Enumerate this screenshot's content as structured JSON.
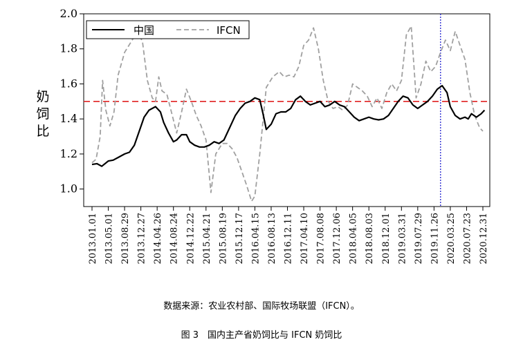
{
  "chart_data": {
    "type": "line",
    "ylabel": "奶饲比",
    "ylim": [
      0.9,
      2.0
    ],
    "yticks": [
      "1.0",
      "1.2",
      "1.4",
      "1.6",
      "1.8",
      "2.0"
    ],
    "categories": [
      "2013.01.01",
      "2013.05.01",
      "2013.08.29",
      "2013.12.27",
      "2014.04.26",
      "2014.08.24",
      "2014.12.22",
      "2015.04.21",
      "2015.08.19",
      "2015.12.17",
      "2016.04.15",
      "2016.08.13",
      "2016.12.11",
      "2017.04.10",
      "2017.08.08",
      "2017.12.06",
      "2018.04.05",
      "2018.08.03",
      "2018.12.01",
      "2019.03.31",
      "2019.07.29",
      "2019.11.26",
      "2020.03.25",
      "2020.07.23",
      "2020.12.31"
    ],
    "reference_line": {
      "y": 1.5,
      "color": "#e02020",
      "style": "dashed"
    },
    "vertical_marker": {
      "at_index": 21.4,
      "color": "#2020d0",
      "style": "dotted"
    },
    "grid": false,
    "legend_position": "top-left",
    "series": [
      {
        "name": "中国",
        "color": "#000000",
        "style": "solid",
        "points": [
          [
            0,
            1.14
          ],
          [
            0.3,
            1.145
          ],
          [
            0.6,
            1.13
          ],
          [
            1.0,
            1.16
          ],
          [
            1.3,
            1.165
          ],
          [
            1.6,
            1.18
          ],
          [
            2.0,
            1.2
          ],
          [
            2.3,
            1.21
          ],
          [
            2.6,
            1.25
          ],
          [
            2.9,
            1.33
          ],
          [
            3.2,
            1.41
          ],
          [
            3.5,
            1.45
          ],
          [
            3.9,
            1.47
          ],
          [
            4.2,
            1.44
          ],
          [
            4.4,
            1.38
          ],
          [
            4.7,
            1.32
          ],
          [
            5.0,
            1.27
          ],
          [
            5.2,
            1.28
          ],
          [
            5.5,
            1.31
          ],
          [
            5.8,
            1.31
          ],
          [
            6.0,
            1.27
          ],
          [
            6.3,
            1.25
          ],
          [
            6.6,
            1.24
          ],
          [
            6.9,
            1.24
          ],
          [
            7.2,
            1.25
          ],
          [
            7.5,
            1.27
          ],
          [
            7.8,
            1.26
          ],
          [
            8.1,
            1.28
          ],
          [
            8.4,
            1.34
          ],
          [
            8.8,
            1.42
          ],
          [
            9.1,
            1.46
          ],
          [
            9.4,
            1.49
          ],
          [
            9.7,
            1.5
          ],
          [
            10.0,
            1.52
          ],
          [
            10.3,
            1.51
          ],
          [
            10.5,
            1.43
          ],
          [
            10.7,
            1.34
          ],
          [
            11.0,
            1.37
          ],
          [
            11.3,
            1.43
          ],
          [
            11.6,
            1.44
          ],
          [
            11.9,
            1.44
          ],
          [
            12.2,
            1.46
          ],
          [
            12.5,
            1.51
          ],
          [
            12.8,
            1.53
          ],
          [
            13.1,
            1.5
          ],
          [
            13.4,
            1.48
          ],
          [
            13.7,
            1.49
          ],
          [
            14.0,
            1.5
          ],
          [
            14.3,
            1.47
          ],
          [
            14.6,
            1.48
          ],
          [
            14.9,
            1.5
          ],
          [
            15.2,
            1.48
          ],
          [
            15.5,
            1.47
          ],
          [
            15.8,
            1.44
          ],
          [
            16.1,
            1.41
          ],
          [
            16.4,
            1.39
          ],
          [
            16.7,
            1.4
          ],
          [
            17.0,
            1.41
          ],
          [
            17.3,
            1.4
          ],
          [
            17.6,
            1.395
          ],
          [
            17.9,
            1.4
          ],
          [
            18.2,
            1.42
          ],
          [
            18.5,
            1.46
          ],
          [
            18.8,
            1.5
          ],
          [
            19.1,
            1.53
          ],
          [
            19.4,
            1.52
          ],
          [
            19.7,
            1.48
          ],
          [
            20.0,
            1.46
          ],
          [
            20.3,
            1.48
          ],
          [
            20.6,
            1.5
          ],
          [
            20.9,
            1.53
          ],
          [
            21.2,
            1.57
          ],
          [
            21.5,
            1.59
          ],
          [
            21.8,
            1.55
          ],
          [
            22.0,
            1.47
          ],
          [
            22.3,
            1.42
          ],
          [
            22.6,
            1.4
          ],
          [
            22.9,
            1.41
          ],
          [
            23.1,
            1.4
          ],
          [
            23.3,
            1.43
          ],
          [
            23.6,
            1.41
          ],
          [
            23.9,
            1.43
          ],
          [
            24.1,
            1.45
          ]
        ]
      },
      {
        "name": "IFCN",
        "color": "#a0a0a0",
        "style": "dashed",
        "points": [
          [
            0,
            1.15
          ],
          [
            0.25,
            1.17
          ],
          [
            0.5,
            1.3
          ],
          [
            0.65,
            1.62
          ],
          [
            0.85,
            1.45
          ],
          [
            1.1,
            1.36
          ],
          [
            1.35,
            1.44
          ],
          [
            1.6,
            1.65
          ],
          [
            2.0,
            1.78
          ],
          [
            2.4,
            1.84
          ],
          [
            2.8,
            1.9
          ],
          [
            3.1,
            1.84
          ],
          [
            3.4,
            1.62
          ],
          [
            3.7,
            1.52
          ],
          [
            3.9,
            1.5
          ],
          [
            4.1,
            1.64
          ],
          [
            4.3,
            1.56
          ],
          [
            4.6,
            1.54
          ],
          [
            4.9,
            1.43
          ],
          [
            5.2,
            1.32
          ],
          [
            5.5,
            1.44
          ],
          [
            5.8,
            1.57
          ],
          [
            6.1,
            1.5
          ],
          [
            6.4,
            1.42
          ],
          [
            6.7,
            1.36
          ],
          [
            7.0,
            1.28
          ],
          [
            7.3,
            0.98
          ],
          [
            7.6,
            1.2
          ],
          [
            8.0,
            1.26
          ],
          [
            8.3,
            1.26
          ],
          [
            8.6,
            1.23
          ],
          [
            8.9,
            1.18
          ],
          [
            9.2,
            1.1
          ],
          [
            9.5,
            1.02
          ],
          [
            9.8,
            0.93
          ],
          [
            10.0,
            0.96
          ],
          [
            10.3,
            1.2
          ],
          [
            10.7,
            1.58
          ],
          [
            11.1,
            1.64
          ],
          [
            11.5,
            1.67
          ],
          [
            11.8,
            1.64
          ],
          [
            12.1,
            1.65
          ],
          [
            12.4,
            1.64
          ],
          [
            12.7,
            1.7
          ],
          [
            13.0,
            1.82
          ],
          [
            13.3,
            1.85
          ],
          [
            13.6,
            1.92
          ],
          [
            13.9,
            1.8
          ],
          [
            14.2,
            1.62
          ],
          [
            14.5,
            1.5
          ],
          [
            14.8,
            1.46
          ],
          [
            15.1,
            1.47
          ],
          [
            15.4,
            1.45
          ],
          [
            15.7,
            1.48
          ],
          [
            16.0,
            1.6
          ],
          [
            16.3,
            1.58
          ],
          [
            16.6,
            1.56
          ],
          [
            16.9,
            1.53
          ],
          [
            17.2,
            1.47
          ],
          [
            17.5,
            1.52
          ],
          [
            17.8,
            1.46
          ],
          [
            18.1,
            1.55
          ],
          [
            18.4,
            1.6
          ],
          [
            18.7,
            1.56
          ],
          [
            19.0,
            1.62
          ],
          [
            19.3,
            1.88
          ],
          [
            19.6,
            1.93
          ],
          [
            19.9,
            1.52
          ],
          [
            20.2,
            1.6
          ],
          [
            20.5,
            1.73
          ],
          [
            20.8,
            1.67
          ],
          [
            21.1,
            1.7
          ],
          [
            21.4,
            1.78
          ],
          [
            21.7,
            1.85
          ],
          [
            22.0,
            1.79
          ],
          [
            22.3,
            1.9
          ],
          [
            22.6,
            1.82
          ],
          [
            22.9,
            1.74
          ],
          [
            23.2,
            1.55
          ],
          [
            23.5,
            1.42
          ],
          [
            23.8,
            1.35
          ],
          [
            24.0,
            1.33
          ]
        ]
      }
    ]
  },
  "source_note": "数据来源：农业农村部、国际牧场联盟（IFCN）。",
  "caption": "图 3　国内主产省奶饲比与 IFCN 奶饲比"
}
